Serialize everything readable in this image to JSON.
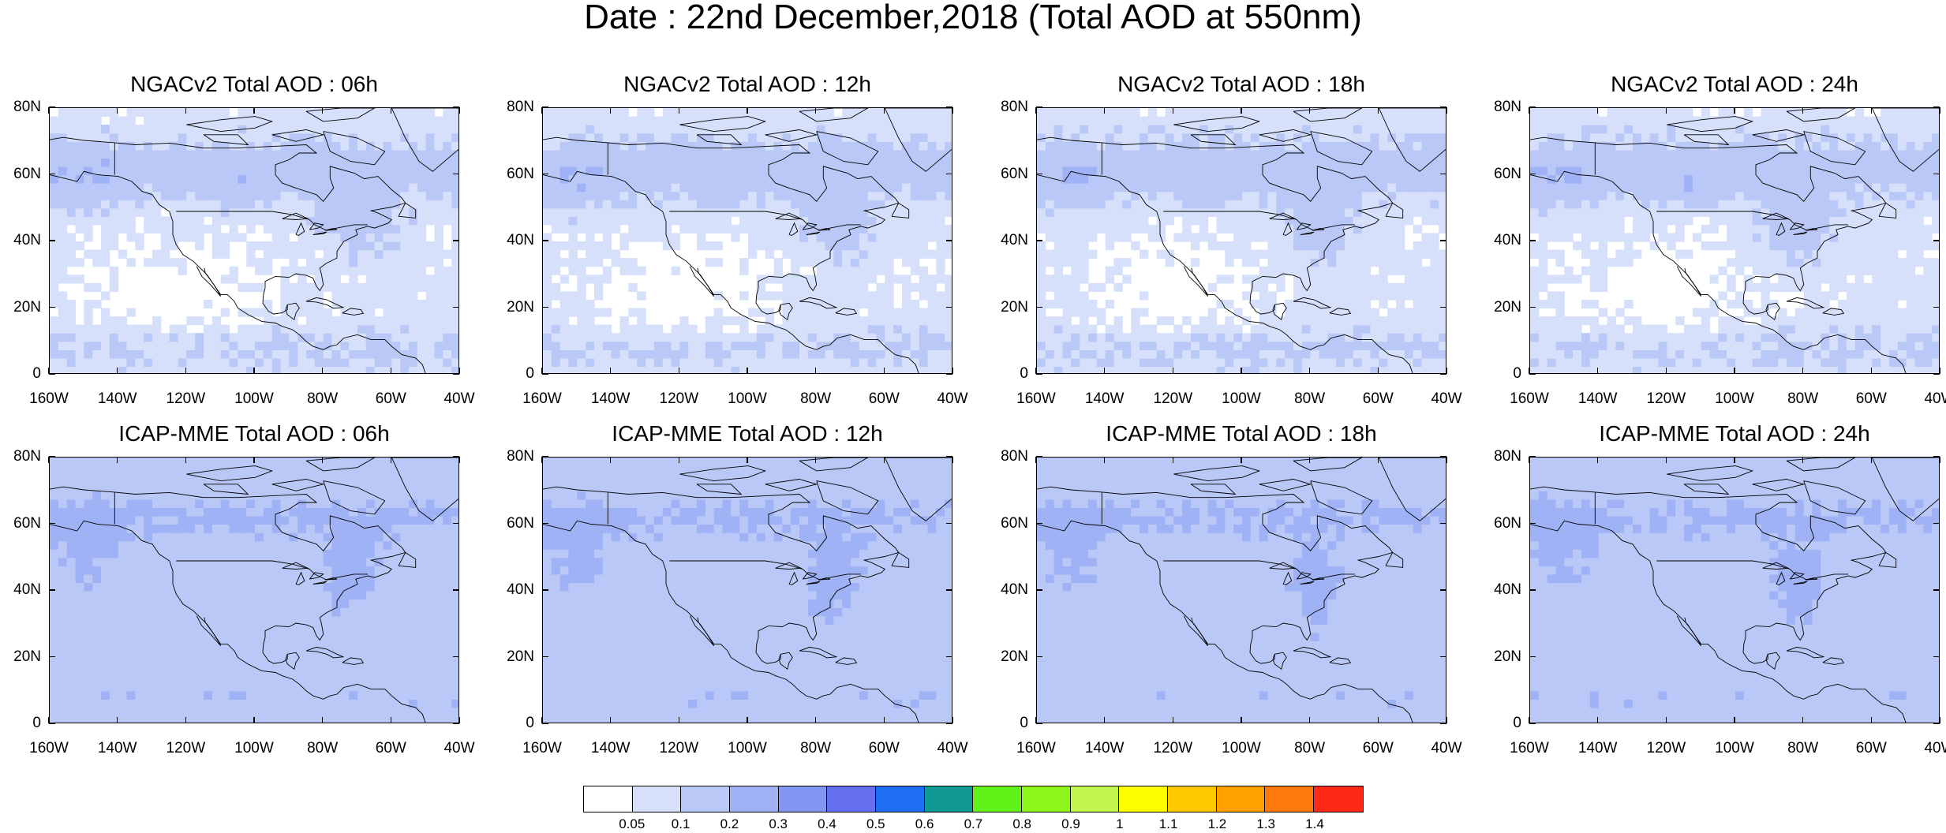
{
  "figure": {
    "title": "Date : 22nd December,2018 (Total AOD at 550nm)"
  },
  "axes": {
    "lat_labels": [
      "80N",
      "60N",
      "40N",
      "20N",
      "0"
    ],
    "lat_values": [
      80,
      60,
      40,
      20,
      0
    ],
    "lon_labels": [
      "160W",
      "140W",
      "120W",
      "100W",
      "80W",
      "60W",
      "40W"
    ],
    "lon_values": [
      -160,
      -140,
      -120,
      -100,
      -80,
      -60,
      -40
    ],
    "lat_range": [
      0,
      80
    ],
    "lon_range": [
      -160,
      -40
    ]
  },
  "panels": [
    {
      "title": "NGACv2 Total AOD : 06h"
    },
    {
      "title": "NGACv2 Total AOD : 12h"
    },
    {
      "title": "NGACv2 Total AOD : 18h"
    },
    {
      "title": "NGACv2 Total AOD : 24h"
    },
    {
      "title": "ICAP-MME Total AOD : 06h"
    },
    {
      "title": "ICAP-MME Total AOD : 12h"
    },
    {
      "title": "ICAP-MME Total AOD : 18h"
    },
    {
      "title": "ICAP-MME Total AOD : 24h"
    }
  ],
  "colorbar": {
    "labels": [
      "0.05",
      "0.1",
      "0.2",
      "0.3",
      "0.4",
      "0.5",
      "0.6",
      "0.7",
      "0.8",
      "0.9",
      "1",
      "1.1",
      "1.2",
      "1.3",
      "1.4"
    ],
    "colors": [
      "#ffffff",
      "#d6e0fb",
      "#b9c8f7",
      "#9fb2f5",
      "#8296f2",
      "#6470ef",
      "#1e6ef5",
      "#119a94",
      "#61f21a",
      "#8ef51a",
      "#c3f74d",
      "#ffff00",
      "#ffc800",
      "#ffa200",
      "#ff7a0a",
      "#ff2a16"
    ]
  }
}
